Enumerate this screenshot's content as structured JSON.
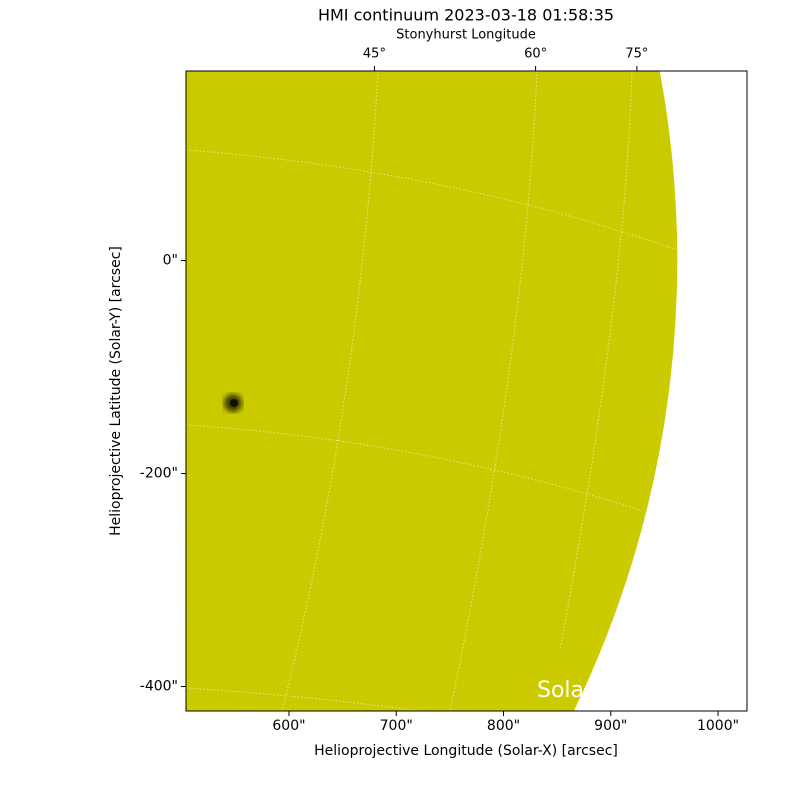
{
  "chart_data": {
    "type": "image",
    "title": "HMI continuum 2023-03-18 01:58:35",
    "x_label": "Helioprojective Longitude (Solar-X) [arcsec]",
    "y_label": "Helioprojective Latitude (Solar-Y) [arcsec]",
    "x2_label": "Stonyhurst Longitude",
    "annotation": "Sola",
    "color": "#cccc00",
    "xlim": [
      504,
      1027
    ],
    "ylim": [
      -423,
      178
    ],
    "xticks": [
      {
        "value": 600,
        "label": "600\""
      },
      {
        "value": 700,
        "label": "700\""
      },
      {
        "value": 800,
        "label": "800\""
      },
      {
        "value": 900,
        "label": "900\""
      },
      {
        "value": 1000,
        "label": "1000\""
      }
    ],
    "yticks": [
      {
        "value": -400,
        "label": "-400\""
      },
      {
        "value": -200,
        "label": "-200\""
      },
      {
        "value": 0,
        "label": "0\""
      }
    ],
    "x2ticks": [
      {
        "value": 45,
        "label": "45°"
      },
      {
        "value": 60,
        "label": "60°"
      },
      {
        "value": 75,
        "label": "75°"
      }
    ]
  }
}
